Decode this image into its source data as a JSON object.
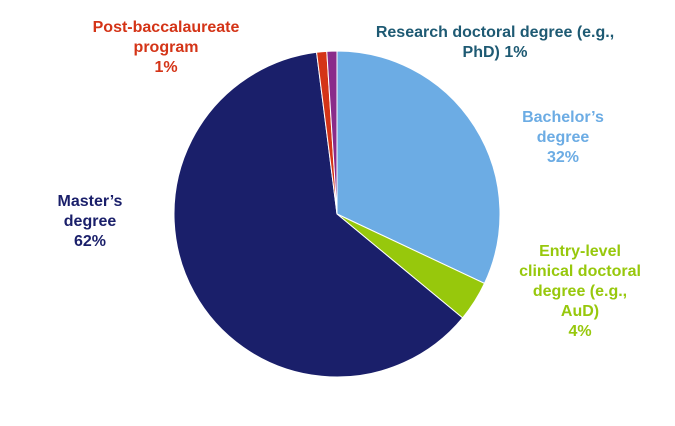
{
  "chart_data": {
    "type": "pie",
    "title": "",
    "start_angle_deg": 0,
    "direction": "clockwise",
    "slices": [
      {
        "name": "Bachelor's degree",
        "label_lines": [
          "Bachelor’s",
          "degree",
          "32%"
        ],
        "value": 32,
        "color": "#6cace4"
      },
      {
        "name": "Entry-level clinical doctoral degree (e.g., AuD)",
        "label_lines": [
          "Entry-level",
          "clinical doctoral",
          "degree (e.g.,",
          "AuD)",
          "4%"
        ],
        "value": 4,
        "color": "#97c80c"
      },
      {
        "name": "Master's degree",
        "label_lines": [
          "Master’s",
          "degree",
          "62%"
        ],
        "value": 62,
        "color": "#1a1f6a"
      },
      {
        "name": "Post-baccalaureate program",
        "label_lines": [
          "Post-baccalaureate",
          "program",
          "1%"
        ],
        "value": 1,
        "color": "#d43417"
      },
      {
        "name": "Research doctoral degree (e.g., PhD)",
        "label_lines": [
          "Research doctoral degree (e.g.,",
          "PhD) 1%"
        ],
        "value": 1,
        "color": "#8a2b8a",
        "label_color": "#1e5a73"
      }
    ]
  }
}
